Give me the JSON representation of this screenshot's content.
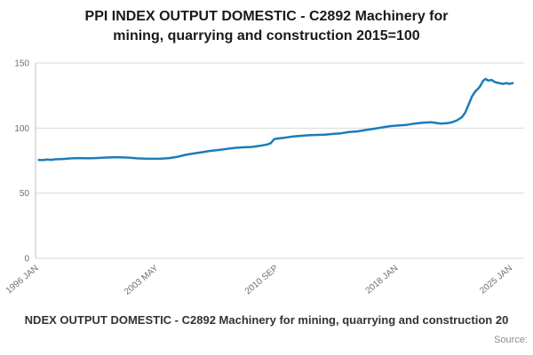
{
  "title": {
    "line1": "PPI INDEX OUTPUT DOMESTIC - C2892 Machinery for",
    "line2": "mining, quarrying and construction 2015=100"
  },
  "footer": {
    "legend": "NDEX OUTPUT DOMESTIC - C2892 Machinery for mining, quarrying and construction 20",
    "source": "Source:"
  },
  "colors": {
    "line": "#1b7cb9",
    "grid": "#d9d9d9",
    "axis": "#c0c0c0",
    "tick_text": "#6f6f6f"
  },
  "chart_data": {
    "type": "line",
    "title": "PPI INDEX OUTPUT DOMESTIC - C2892 Machinery for mining, quarrying and construction 2015=100",
    "xlabel": "",
    "ylabel": "",
    "ylim": [
      0,
      150
    ],
    "xlim": [
      1995.8,
      2025.7
    ],
    "grid": true,
    "legend_position": "bottom",
    "yticks": [
      0,
      50,
      100,
      150
    ],
    "xticks": [
      {
        "pos": 1996.0,
        "label": "1996 JAN"
      },
      {
        "pos": 2003.33,
        "label": "2003 MAY"
      },
      {
        "pos": 2010.67,
        "label": "2010 SEP"
      },
      {
        "pos": 2018.0,
        "label": "2018 JAN"
      },
      {
        "pos": 2025.0,
        "label": "2025 JAN"
      }
    ],
    "series": [
      {
        "name": "PPI INDEX OUTPUT DOMESTIC - C2892 Machinery for mining, quarrying and construction 2015=100",
        "color": "#1b7cb9",
        "points": [
          [
            1996.0,
            75.5
          ],
          [
            1996.25,
            75.4
          ],
          [
            1996.5,
            75.8
          ],
          [
            1996.75,
            75.6
          ],
          [
            1997.0,
            76.0
          ],
          [
            1997.5,
            76.3
          ],
          [
            1998.0,
            76.8
          ],
          [
            1998.5,
            77.0
          ],
          [
            1999.0,
            76.8
          ],
          [
            1999.5,
            77.0
          ],
          [
            2000.0,
            77.3
          ],
          [
            2000.5,
            77.5
          ],
          [
            2001.0,
            77.6
          ],
          [
            2001.5,
            77.3
          ],
          [
            2002.0,
            76.8
          ],
          [
            2002.5,
            76.5
          ],
          [
            2003.0,
            76.4
          ],
          [
            2003.5,
            76.6
          ],
          [
            2004.0,
            77.0
          ],
          [
            2004.5,
            78.0
          ],
          [
            2005.0,
            79.5
          ],
          [
            2005.5,
            80.5
          ],
          [
            2006.0,
            81.5
          ],
          [
            2006.5,
            82.5
          ],
          [
            2007.0,
            83.2
          ],
          [
            2007.5,
            84.0
          ],
          [
            2008.0,
            84.8
          ],
          [
            2008.5,
            85.2
          ],
          [
            2009.0,
            85.5
          ],
          [
            2009.3,
            86.0
          ],
          [
            2009.6,
            86.5
          ],
          [
            2010.0,
            87.5
          ],
          [
            2010.2,
            88.5
          ],
          [
            2010.4,
            91.5
          ],
          [
            2010.6,
            92.0
          ],
          [
            2011.0,
            92.5
          ],
          [
            2011.5,
            93.5
          ],
          [
            2012.0,
            94.0
          ],
          [
            2012.5,
            94.5
          ],
          [
            2013.0,
            94.8
          ],
          [
            2013.5,
            95.0
          ],
          [
            2014.0,
            95.5
          ],
          [
            2014.5,
            96.0
          ],
          [
            2015.0,
            97.0
          ],
          [
            2015.5,
            97.5
          ],
          [
            2016.0,
            98.5
          ],
          [
            2016.5,
            99.5
          ],
          [
            2017.0,
            100.5
          ],
          [
            2017.5,
            101.5
          ],
          [
            2018.0,
            102.0
          ],
          [
            2018.5,
            102.5
          ],
          [
            2019.0,
            103.5
          ],
          [
            2019.5,
            104.2
          ],
          [
            2020.0,
            104.5
          ],
          [
            2020.3,
            104.0
          ],
          [
            2020.6,
            103.5
          ],
          [
            2021.0,
            103.8
          ],
          [
            2021.3,
            104.5
          ],
          [
            2021.6,
            106.0
          ],
          [
            2021.9,
            108.5
          ],
          [
            2022.1,
            112.0
          ],
          [
            2022.3,
            118.0
          ],
          [
            2022.5,
            124.0
          ],
          [
            2022.7,
            128.0
          ],
          [
            2022.9,
            130.5
          ],
          [
            2023.0,
            132.0
          ],
          [
            2023.2,
            136.5
          ],
          [
            2023.35,
            137.8
          ],
          [
            2023.5,
            136.5
          ],
          [
            2023.7,
            137.0
          ],
          [
            2023.9,
            135.5
          ],
          [
            2024.0,
            135.0
          ],
          [
            2024.2,
            134.5
          ],
          [
            2024.4,
            134.0
          ],
          [
            2024.6,
            134.6
          ],
          [
            2024.8,
            134.0
          ],
          [
            2025.0,
            134.5
          ]
        ]
      }
    ]
  }
}
